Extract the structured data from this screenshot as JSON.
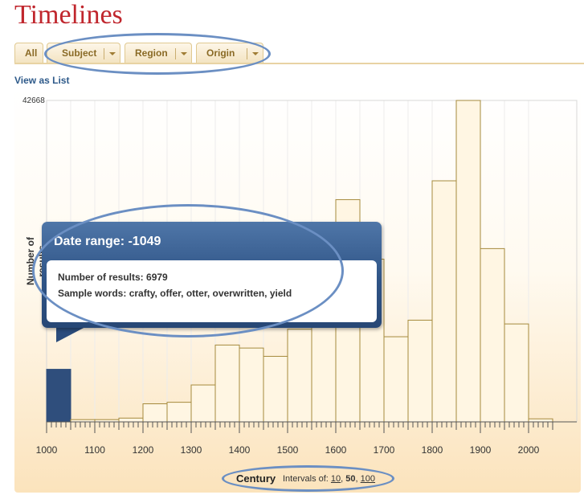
{
  "page": {
    "title": "Timelines",
    "view_link": "View as List"
  },
  "tabs": [
    {
      "label": "All"
    },
    {
      "label": "Subject"
    },
    {
      "label": "Region"
    },
    {
      "label": "Origin"
    }
  ],
  "tooltip": {
    "title": "Date range: -1049",
    "results_line": "Number of results: 6979",
    "words_line": "Sample words: crafty, offer, otter, overwritten, yield"
  },
  "intervals": {
    "prefix": "Intervals of:",
    "options": [
      "10",
      "50",
      "100"
    ],
    "selected": "50",
    "sep1": ",",
    "sep2": ","
  },
  "colors": {
    "bar_fill": "#fff6e3",
    "bar_stroke": "#a58a3d",
    "bar_highlight": "#2f4e7c",
    "accent": "#c0262d",
    "ellipse": "#6b8fc3"
  },
  "chart_data": {
    "type": "bar",
    "title": "",
    "xlabel": "Century",
    "ylabel": "Number of results",
    "ymax_label": "42668",
    "ylim": [
      0,
      42668
    ],
    "xlim": [
      1000,
      2050
    ],
    "bin_width": 50,
    "x_ticks": [
      1000,
      1100,
      1200,
      1300,
      1400,
      1500,
      1600,
      1700,
      1800,
      1900,
      2000
    ],
    "bins": [
      {
        "start": 1000,
        "value": 6979,
        "highlighted": true
      },
      {
        "start": 1050,
        "value": 300
      },
      {
        "start": 1100,
        "value": 300
      },
      {
        "start": 1150,
        "value": 500
      },
      {
        "start": 1200,
        "value": 2400
      },
      {
        "start": 1250,
        "value": 2600
      },
      {
        "start": 1300,
        "value": 4900
      },
      {
        "start": 1350,
        "value": 10200
      },
      {
        "start": 1400,
        "value": 9800
      },
      {
        "start": 1450,
        "value": 8700
      },
      {
        "start": 1500,
        "value": 12300
      },
      {
        "start": 1550,
        "value": 15500
      },
      {
        "start": 1600,
        "value": 29500
      },
      {
        "start": 1650,
        "value": 21600
      },
      {
        "start": 1700,
        "value": 11300
      },
      {
        "start": 1750,
        "value": 13500
      },
      {
        "start": 1800,
        "value": 32000
      },
      {
        "start": 1850,
        "value": 42668
      },
      {
        "start": 1900,
        "value": 23000
      },
      {
        "start": 1950,
        "value": 13000
      },
      {
        "start": 2000,
        "value": 400
      }
    ]
  }
}
